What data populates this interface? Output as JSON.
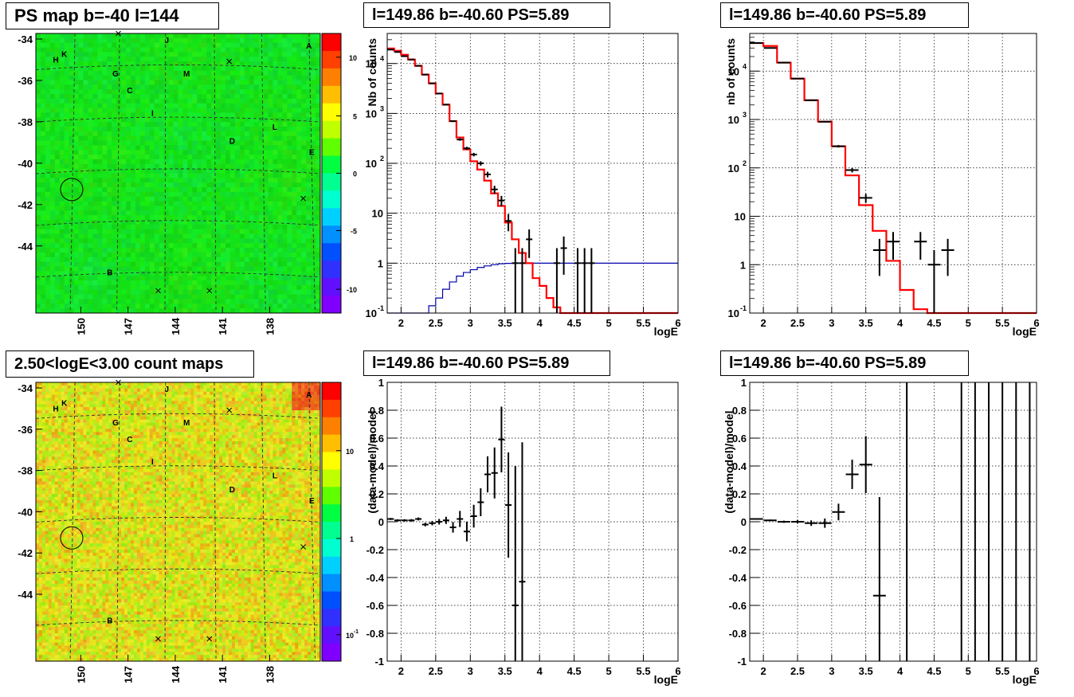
{
  "maps": {
    "ps_map_title": "PS map b=-40 l=144",
    "count_map_title": "2.50<logE<3.00 count maps",
    "y_ticks": [
      "-34",
      "-36",
      "-38",
      "-40",
      "-42",
      "-44"
    ],
    "x_ticks": [
      "150",
      "147",
      "144",
      "141",
      "138"
    ],
    "ps_colorbar_ticks": [
      "10",
      "5",
      "0",
      "-5",
      "-10"
    ],
    "count_colorbar_ticks": [
      "10",
      "1",
      "10"
    ],
    "count_colorbar_exp": "-1",
    "source_labels": [
      "A",
      "B",
      "C",
      "D",
      "E",
      "G",
      "H",
      "K",
      "I",
      "J",
      "L",
      "M"
    ]
  },
  "spectrum_title": "l=149.86 b=-40.60 PS=5.89",
  "axes": {
    "xlabel": "logE",
    "counts_ylabel_1": "Nb of counts",
    "counts_ylabel_2": "nb of counts",
    "residual_ylabel": "(data-model)/model",
    "x_ticks": [
      "2",
      "2.5",
      "3",
      "3.5",
      "4",
      "4.5",
      "5",
      "5.5",
      "6"
    ],
    "log_y_ticks": [
      "10",
      "1",
      "10",
      "10",
      "10",
      "10"
    ],
    "log_y_exps": [
      "-1",
      "",
      "",
      "2",
      "3",
      "4"
    ],
    "residual_y_ticks": [
      "1",
      "0.8",
      "0.6",
      "0.4",
      "0.2",
      "0",
      "-0.2",
      "-0.4",
      "-0.6",
      "-0.8",
      "-1"
    ]
  },
  "chart_data": [
    {
      "type": "heatmap",
      "title": "PS map b=-40 l=144",
      "colorscale_range": [
        -12,
        12
      ],
      "description_values": {
        "background": 0,
        "source_circle": [
          149.86,
          -40.6
        ]
      },
      "x_axis_ticks": [
        150,
        147,
        144,
        141,
        138
      ],
      "y_range": [
        -45.8,
        -33.6
      ]
    },
    {
      "type": "heatmap",
      "title": "2.50<logE<3.00 count maps",
      "colorscale": "log",
      "colorscale_range": [
        0.05,
        30
      ],
      "x_axis_ticks": [
        150,
        147,
        144,
        141,
        138
      ],
      "y_range": [
        -45.8,
        -33.6
      ]
    },
    {
      "type": "line",
      "title": "l=149.86 b=-40.60 PS=5.89",
      "xlabel": "logE",
      "ylabel": "Nb of counts",
      "ylog": true,
      "xlim": [
        1.8,
        6
      ],
      "ylim": [
        0.1,
        40000
      ],
      "data_points": [
        {
          "x": 1.85,
          "y": 19000
        },
        {
          "x": 1.95,
          "y": 17000
        },
        {
          "x": 2.05,
          "y": 14000
        },
        {
          "x": 2.15,
          "y": 12000
        },
        {
          "x": 2.25,
          "y": 9000
        },
        {
          "x": 2.35,
          "y": 6000
        },
        {
          "x": 2.45,
          "y": 4000
        },
        {
          "x": 2.55,
          "y": 2500
        },
        {
          "x": 2.65,
          "y": 1500
        },
        {
          "x": 2.75,
          "y": 700
        },
        {
          "x": 2.85,
          "y": 300
        },
        {
          "x": 2.95,
          "y": 200
        },
        {
          "x": 3.05,
          "y": 150
        },
        {
          "x": 3.15,
          "y": 100
        },
        {
          "x": 3.25,
          "y": 60
        },
        {
          "x": 3.35,
          "y": 30
        },
        {
          "x": 3.45,
          "y": 18
        },
        {
          "x": 3.55,
          "y": 7
        },
        {
          "x": 3.65,
          "y": 1
        },
        {
          "x": 3.75,
          "y": 1
        },
        {
          "x": 3.85,
          "y": 3
        },
        {
          "x": 4.25,
          "y": 1
        },
        {
          "x": 4.35,
          "y": 2
        },
        {
          "x": 4.55,
          "y": 1
        },
        {
          "x": 4.65,
          "y": 1
        },
        {
          "x": 4.75,
          "y": 1
        }
      ],
      "series": [
        {
          "name": "model",
          "color": "#ff0000",
          "x": [
            1.8,
            1.9,
            2.0,
            2.1,
            2.2,
            2.3,
            2.4,
            2.5,
            2.6,
            2.7,
            2.8,
            2.9,
            3.0,
            3.1,
            3.2,
            3.3,
            3.4,
            3.5,
            3.6,
            3.7,
            3.8,
            3.9,
            4.0,
            4.1,
            4.2,
            4.3,
            4.4,
            4.5,
            4.6,
            4.7,
            4.8,
            6.0
          ],
          "y": [
            20000,
            18000,
            15000,
            12000,
            9000,
            6000,
            4000,
            2500,
            1500,
            700,
            330,
            190,
            110,
            75,
            45,
            25,
            14,
            6.5,
            3,
            1.6,
            1,
            0.5,
            0.35,
            0.2,
            0.13,
            0.1,
            0.1,
            0.1,
            0.1,
            0.1,
            0.1,
            0.1
          ]
        },
        {
          "name": "efficiency",
          "color": "#0000aa",
          "x": [
            1.8,
            2.0,
            2.1,
            2.2,
            2.3,
            2.4,
            2.5,
            2.6,
            2.7,
            2.8,
            2.9,
            3.0,
            3.1,
            3.2,
            3.3,
            3.4,
            3.5,
            3.6,
            6.0
          ],
          "y": [
            0.1,
            0.1,
            0.1,
            0.1,
            0.1,
            0.14,
            0.2,
            0.3,
            0.42,
            0.55,
            0.65,
            0.74,
            0.82,
            0.88,
            0.93,
            0.97,
            0.99,
            1.0,
            1.0
          ]
        }
      ]
    },
    {
      "type": "line",
      "title": "l=149.86 b=-40.60 PS=5.89",
      "xlabel": "logE",
      "ylabel": "nb of counts",
      "ylog": true,
      "xlim": [
        1.8,
        6
      ],
      "ylim": [
        0.1,
        60000
      ],
      "data_points": [
        {
          "x": 1.9,
          "y": 38000
        },
        {
          "x": 2.1,
          "y": 30000
        },
        {
          "x": 2.3,
          "y": 15000
        },
        {
          "x": 2.5,
          "y": 7000
        },
        {
          "x": 2.7,
          "y": 2500
        },
        {
          "x": 2.9,
          "y": 900
        },
        {
          "x": 3.1,
          "y": 280
        },
        {
          "x": 3.3,
          "y": 90
        },
        {
          "x": 3.5,
          "y": 24
        },
        {
          "x": 3.7,
          "y": 2
        },
        {
          "x": 3.9,
          "y": 3
        },
        {
          "x": 4.3,
          "y": 3
        },
        {
          "x": 4.5,
          "y": 1
        },
        {
          "x": 4.7,
          "y": 2
        }
      ],
      "series": [
        {
          "name": "model",
          "color": "#ff0000",
          "x": [
            1.8,
            2.0,
            2.2,
            2.4,
            2.6,
            2.8,
            3.0,
            3.2,
            3.4,
            3.6,
            3.8,
            4.0,
            4.2,
            4.4,
            6.0
          ],
          "y": [
            38000,
            33000,
            15000,
            7000,
            2500,
            900,
            280,
            70,
            17,
            5,
            1.2,
            0.3,
            0.12,
            0.1,
            0.1
          ]
        }
      ]
    },
    {
      "type": "scatter",
      "title": "l=149.86 b=-40.60 PS=5.89",
      "xlabel": "logE",
      "ylabel": "(data-model)/model",
      "xlim": [
        1.8,
        6
      ],
      "ylim": [
        -1,
        1
      ],
      "points": [
        {
          "x": 1.85,
          "y": 0.02
        },
        {
          "x": 1.95,
          "y": 0.01
        },
        {
          "x": 2.05,
          "y": 0.01
        },
        {
          "x": 2.15,
          "y": 0.01
        },
        {
          "x": 2.25,
          "y": 0.02
        },
        {
          "x": 2.35,
          "y": -0.02
        },
        {
          "x": 2.45,
          "y": -0.01
        },
        {
          "x": 2.55,
          "y": 0.0
        },
        {
          "x": 2.65,
          "y": 0.01
        },
        {
          "x": 2.75,
          "y": -0.04
        },
        {
          "x": 2.85,
          "y": 0.02
        },
        {
          "x": 2.95,
          "y": -0.07
        },
        {
          "x": 3.05,
          "y": 0.04
        },
        {
          "x": 3.15,
          "y": 0.14
        },
        {
          "x": 3.25,
          "y": 0.34
        },
        {
          "x": 3.35,
          "y": 0.35
        },
        {
          "x": 3.45,
          "y": 0.59
        },
        {
          "x": 3.55,
          "y": 0.12
        },
        {
          "x": 3.65,
          "y": -0.6
        },
        {
          "x": 3.75,
          "y": -0.43
        }
      ]
    },
    {
      "type": "scatter",
      "title": "l=149.86 b=-40.60 PS=5.89",
      "xlabel": "logE",
      "ylabel": "(data-model)/model",
      "xlim": [
        1.8,
        6
      ],
      "ylim": [
        -1,
        1
      ],
      "points": [
        {
          "x": 1.9,
          "y": 0.02
        },
        {
          "x": 2.1,
          "y": 0.01
        },
        {
          "x": 2.3,
          "y": 0.0
        },
        {
          "x": 2.5,
          "y": 0.0
        },
        {
          "x": 2.7,
          "y": -0.01
        },
        {
          "x": 2.9,
          "y": -0.01
        },
        {
          "x": 3.1,
          "y": 0.07
        },
        {
          "x": 3.3,
          "y": 0.34
        },
        {
          "x": 3.5,
          "y": 0.41
        },
        {
          "x": 3.7,
          "y": -0.53
        }
      ],
      "vertical_lines_at": [
        4.1,
        4.9,
        5.1,
        5.3,
        5.5,
        5.7,
        5.9
      ]
    }
  ]
}
